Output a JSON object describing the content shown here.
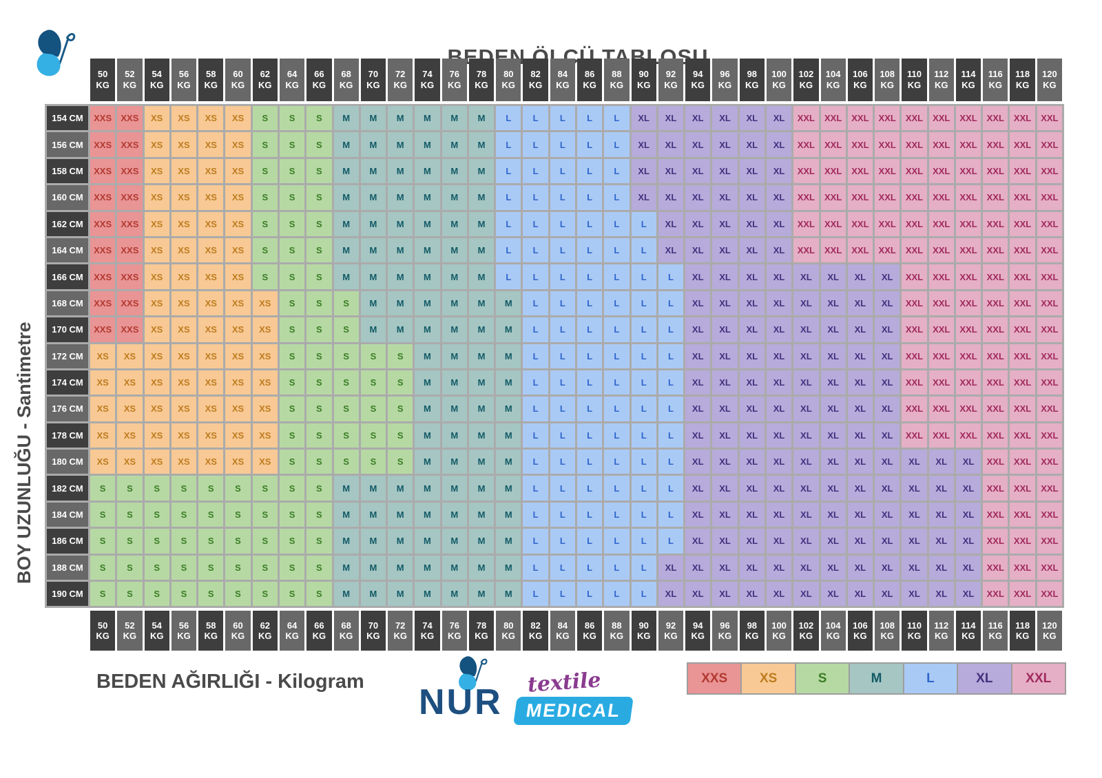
{
  "page_title": "BEDEN ÖLCÜ TABLOSU",
  "axes": {
    "y": "BOY UZUNLUĞU - Santimetre",
    "x": "BEDEN AĞIRLIĞI - Kilogram"
  },
  "units": {
    "weight": "KG",
    "height": "CM"
  },
  "logo": {
    "brand": "NUR",
    "line1": "textile",
    "line2": "MEDICAL"
  },
  "legend": [
    "XXS",
    "XS",
    "S",
    "M",
    "L",
    "XL",
    "XXL"
  ],
  "size_colors": {
    "XXS": {
      "bg": "#e99495",
      "fg": "#b23a31"
    },
    "XS": {
      "bg": "#f8c994",
      "fg": "#be7c20"
    },
    "S": {
      "bg": "#b6d9a3",
      "fg": "#3b7d26"
    },
    "M": {
      "bg": "#a5c6c3",
      "fg": "#125a66"
    },
    "L": {
      "bg": "#aacaf6",
      "fg": "#2f66cc"
    },
    "XL": {
      "bg": "#b6abda",
      "fg": "#43307f"
    },
    "XXL": {
      "bg": "#e5afc5",
      "fg": "#a02a5d"
    }
  },
  "header_colors": {
    "dark": "#3e3e3e",
    "light": "#686868"
  },
  "chart_data": {
    "type": "table",
    "title": "BEDEN ÖLCÜ TABLOSU",
    "xlabel": "BEDEN AĞIRLIĞI - Kilogram",
    "ylabel": "BOY UZUNLUĞU - Santimetre",
    "weights_kg": [
      50,
      52,
      54,
      56,
      58,
      60,
      62,
      64,
      66,
      68,
      70,
      72,
      74,
      76,
      78,
      80,
      82,
      84,
      86,
      88,
      90,
      92,
      94,
      96,
      98,
      100,
      102,
      104,
      106,
      108,
      110,
      112,
      114,
      116,
      118,
      120
    ],
    "heights_cm": [
      154,
      156,
      158,
      160,
      162,
      164,
      166,
      168,
      170,
      172,
      174,
      176,
      178,
      180,
      182,
      184,
      186,
      188,
      190
    ],
    "cells": [
      [
        "XXS",
        "XXS",
        "XS",
        "XS",
        "XS",
        "XS",
        "S",
        "S",
        "S",
        "M",
        "M",
        "M",
        "M",
        "M",
        "M",
        "L",
        "L",
        "L",
        "L",
        "L",
        "XL",
        "XL",
        "XL",
        "XL",
        "XL",
        "XL",
        "XXL",
        "XXL",
        "XXL",
        "XXL",
        "XXL",
        "XXL",
        "XXL",
        "XXL",
        "XXL",
        "XXL"
      ],
      [
        "XXS",
        "XXS",
        "XS",
        "XS",
        "XS",
        "XS",
        "S",
        "S",
        "S",
        "M",
        "M",
        "M",
        "M",
        "M",
        "M",
        "L",
        "L",
        "L",
        "L",
        "L",
        "XL",
        "XL",
        "XL",
        "XL",
        "XL",
        "XL",
        "XXL",
        "XXL",
        "XXL",
        "XXL",
        "XXL",
        "XXL",
        "XXL",
        "XXL",
        "XXL",
        "XXL"
      ],
      [
        "XXS",
        "XXS",
        "XS",
        "XS",
        "XS",
        "XS",
        "S",
        "S",
        "S",
        "M",
        "M",
        "M",
        "M",
        "M",
        "M",
        "L",
        "L",
        "L",
        "L",
        "L",
        "XL",
        "XL",
        "XL",
        "XL",
        "XL",
        "XL",
        "XXL",
        "XXL",
        "XXL",
        "XXL",
        "XXL",
        "XXL",
        "XXL",
        "XXL",
        "XXL",
        "XXL"
      ],
      [
        "XXS",
        "XXS",
        "XS",
        "XS",
        "XS",
        "XS",
        "S",
        "S",
        "S",
        "M",
        "M",
        "M",
        "M",
        "M",
        "M",
        "L",
        "L",
        "L",
        "L",
        "L",
        "XL",
        "XL",
        "XL",
        "XL",
        "XL",
        "XL",
        "XXL",
        "XXL",
        "XXL",
        "XXL",
        "XXL",
        "XXL",
        "XXL",
        "XXL",
        "XXL",
        "XXL"
      ],
      [
        "XXS",
        "XXS",
        "XS",
        "XS",
        "XS",
        "XS",
        "S",
        "S",
        "S",
        "M",
        "M",
        "M",
        "M",
        "M",
        "M",
        "L",
        "L",
        "L",
        "L",
        "L",
        "L",
        "XL",
        "XL",
        "XL",
        "XL",
        "XL",
        "XXL",
        "XXL",
        "XXL",
        "XXL",
        "XXL",
        "XXL",
        "XXL",
        "XXL",
        "XXL",
        "XXL"
      ],
      [
        "XXS",
        "XXS",
        "XS",
        "XS",
        "XS",
        "XS",
        "S",
        "S",
        "S",
        "M",
        "M",
        "M",
        "M",
        "M",
        "M",
        "L",
        "L",
        "L",
        "L",
        "L",
        "L",
        "XL",
        "XL",
        "XL",
        "XL",
        "XL",
        "XXL",
        "XXL",
        "XXL",
        "XXL",
        "XXL",
        "XXL",
        "XXL",
        "XXL",
        "XXL",
        "XXL"
      ],
      [
        "XXS",
        "XXS",
        "XS",
        "XS",
        "XS",
        "XS",
        "S",
        "S",
        "S",
        "M",
        "M",
        "M",
        "M",
        "M",
        "M",
        "L",
        "L",
        "L",
        "L",
        "L",
        "L",
        "L",
        "XL",
        "XL",
        "XL",
        "XL",
        "XL",
        "XL",
        "XL",
        "XL",
        "XXL",
        "XXL",
        "XXL",
        "XXL",
        "XXL",
        "XXL"
      ],
      [
        "XXS",
        "XXS",
        "XS",
        "XS",
        "XS",
        "XS",
        "XS",
        "S",
        "S",
        "S",
        "M",
        "M",
        "M",
        "M",
        "M",
        "M",
        "L",
        "L",
        "L",
        "L",
        "L",
        "L",
        "XL",
        "XL",
        "XL",
        "XL",
        "XL",
        "XL",
        "XL",
        "XL",
        "XXL",
        "XXL",
        "XXL",
        "XXL",
        "XXL",
        "XXL"
      ],
      [
        "XXS",
        "XXS",
        "XS",
        "XS",
        "XS",
        "XS",
        "XS",
        "S",
        "S",
        "S",
        "M",
        "M",
        "M",
        "M",
        "M",
        "M",
        "L",
        "L",
        "L",
        "L",
        "L",
        "L",
        "XL",
        "XL",
        "XL",
        "XL",
        "XL",
        "XL",
        "XL",
        "XL",
        "XXL",
        "XXL",
        "XXL",
        "XXL",
        "XXL",
        "XXL"
      ],
      [
        "XS",
        "XS",
        "XS",
        "XS",
        "XS",
        "XS",
        "XS",
        "S",
        "S",
        "S",
        "S",
        "S",
        "M",
        "M",
        "M",
        "M",
        "L",
        "L",
        "L",
        "L",
        "L",
        "L",
        "XL",
        "XL",
        "XL",
        "XL",
        "XL",
        "XL",
        "XL",
        "XL",
        "XXL",
        "XXL",
        "XXL",
        "XXL",
        "XXL",
        "XXL"
      ],
      [
        "XS",
        "XS",
        "XS",
        "XS",
        "XS",
        "XS",
        "XS",
        "S",
        "S",
        "S",
        "S",
        "S",
        "M",
        "M",
        "M",
        "M",
        "L",
        "L",
        "L",
        "L",
        "L",
        "L",
        "XL",
        "XL",
        "XL",
        "XL",
        "XL",
        "XL",
        "XL",
        "XL",
        "XXL",
        "XXL",
        "XXL",
        "XXL",
        "XXL",
        "XXL"
      ],
      [
        "XS",
        "XS",
        "XS",
        "XS",
        "XS",
        "XS",
        "XS",
        "S",
        "S",
        "S",
        "S",
        "S",
        "M",
        "M",
        "M",
        "M",
        "L",
        "L",
        "L",
        "L",
        "L",
        "L",
        "XL",
        "XL",
        "XL",
        "XL",
        "XL",
        "XL",
        "XL",
        "XL",
        "XXL",
        "XXL",
        "XXL",
        "XXL",
        "XXL",
        "XXL"
      ],
      [
        "XS",
        "XS",
        "XS",
        "XS",
        "XS",
        "XS",
        "XS",
        "S",
        "S",
        "S",
        "S",
        "S",
        "M",
        "M",
        "M",
        "M",
        "L",
        "L",
        "L",
        "L",
        "L",
        "L",
        "XL",
        "XL",
        "XL",
        "XL",
        "XL",
        "XL",
        "XL",
        "XL",
        "XXL",
        "XXL",
        "XXL",
        "XXL",
        "XXL",
        "XXL"
      ],
      [
        "XS",
        "XS",
        "XS",
        "XS",
        "XS",
        "XS",
        "XS",
        "S",
        "S",
        "S",
        "S",
        "S",
        "M",
        "M",
        "M",
        "M",
        "L",
        "L",
        "L",
        "L",
        "L",
        "L",
        "XL",
        "XL",
        "XL",
        "XL",
        "XL",
        "XL",
        "XL",
        "XL",
        "XL",
        "XL",
        "XL",
        "XXL",
        "XXL",
        "XXL"
      ],
      [
        "S",
        "S",
        "S",
        "S",
        "S",
        "S",
        "S",
        "S",
        "S",
        "M",
        "M",
        "M",
        "M",
        "M",
        "M",
        "M",
        "L",
        "L",
        "L",
        "L",
        "L",
        "L",
        "XL",
        "XL",
        "XL",
        "XL",
        "XL",
        "XL",
        "XL",
        "XL",
        "XL",
        "XL",
        "XL",
        "XXL",
        "XXL",
        "XXL"
      ],
      [
        "S",
        "S",
        "S",
        "S",
        "S",
        "S",
        "S",
        "S",
        "S",
        "M",
        "M",
        "M",
        "M",
        "M",
        "M",
        "M",
        "L",
        "L",
        "L",
        "L",
        "L",
        "L",
        "XL",
        "XL",
        "XL",
        "XL",
        "XL",
        "XL",
        "XL",
        "XL",
        "XL",
        "XL",
        "XL",
        "XXL",
        "XXL",
        "XXL"
      ],
      [
        "S",
        "S",
        "S",
        "S",
        "S",
        "S",
        "S",
        "S",
        "S",
        "M",
        "M",
        "M",
        "M",
        "M",
        "M",
        "M",
        "L",
        "L",
        "L",
        "L",
        "L",
        "L",
        "XL",
        "XL",
        "XL",
        "XL",
        "XL",
        "XL",
        "XL",
        "XL",
        "XL",
        "XL",
        "XL",
        "XXL",
        "XXL",
        "XXL"
      ],
      [
        "S",
        "S",
        "S",
        "S",
        "S",
        "S",
        "S",
        "S",
        "S",
        "M",
        "M",
        "M",
        "M",
        "M",
        "M",
        "M",
        "L",
        "L",
        "L",
        "L",
        "L",
        "XL",
        "XL",
        "XL",
        "XL",
        "XL",
        "XL",
        "XL",
        "XL",
        "XL",
        "XL",
        "XL",
        "XL",
        "XXL",
        "XXL",
        "XXL"
      ],
      [
        "S",
        "S",
        "S",
        "S",
        "S",
        "S",
        "S",
        "S",
        "S",
        "M",
        "M",
        "M",
        "M",
        "M",
        "M",
        "M",
        "L",
        "L",
        "L",
        "L",
        "L",
        "XL",
        "XL",
        "XL",
        "XL",
        "XL",
        "XL",
        "XL",
        "XL",
        "XL",
        "XL",
        "XL",
        "XL",
        "XXL",
        "XXL",
        "XXL"
      ]
    ]
  }
}
